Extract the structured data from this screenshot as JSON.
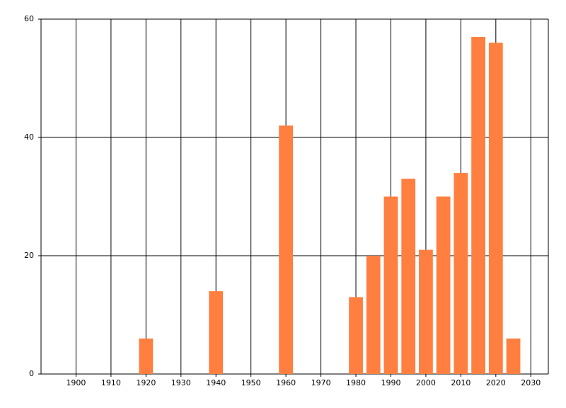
{
  "chart_data": {
    "type": "bar",
    "x": [
      1920,
      1940,
      1960,
      1980,
      1985,
      1990,
      1995,
      2000,
      2005,
      2010,
      2015,
      2020,
      2025
    ],
    "values": [
      6,
      14,
      42,
      13,
      20,
      30,
      33,
      21,
      30,
      34,
      57,
      56,
      6
    ],
    "color": "#ff7f40",
    "xlim": [
      1890,
      2035
    ],
    "xticks": [
      1900,
      1910,
      1920,
      1930,
      1940,
      1950,
      1960,
      1970,
      1980,
      1990,
      2000,
      2010,
      2020,
      2030
    ],
    "ylim": [
      0,
      60
    ],
    "yticks": [
      0,
      20,
      40,
      60
    ],
    "grid": true
  }
}
